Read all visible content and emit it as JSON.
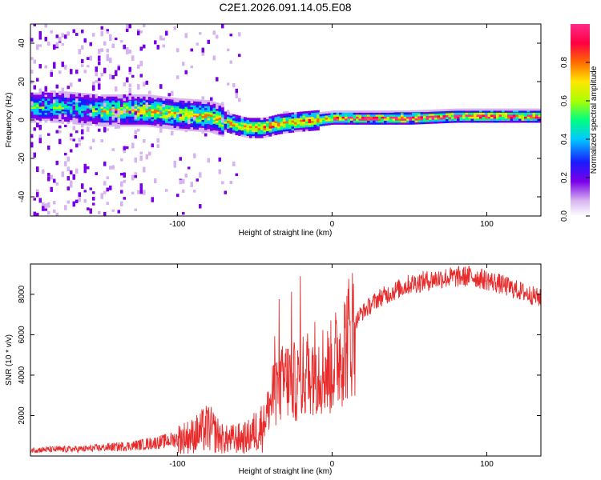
{
  "title": "C2E1.2026.091.14.05.E08",
  "colors": {
    "snr_line": "#e82a2a",
    "frame": "#000000",
    "background": "#ffffff"
  },
  "chart_data": [
    {
      "type": "heatmap",
      "xlabel": "Height of straight line (km)",
      "ylabel": "Frequency (Hz)",
      "xlim": [
        -195,
        135
      ],
      "ylim": [
        -50,
        50
      ],
      "xticks": [
        -100,
        0,
        100
      ],
      "yticks": [
        -40,
        -20,
        0,
        20,
        40
      ],
      "colorbar": {
        "label": "Normalized spectral amplitude",
        "range": [
          0,
          1
        ],
        "ticks": [
          0.0,
          0.2,
          0.4,
          0.6,
          0.8
        ],
        "tick_labels": [
          "0.0",
          "0.2",
          "0.4",
          "0.6",
          "0.8"
        ],
        "colormap": [
          "#ffffff",
          "#d6b4f0",
          "#7a00e8",
          "#1a1aff",
          "#00c8ff",
          "#00ff80",
          "#aaff00",
          "#ffe600",
          "#ff6a00",
          "#ff0040",
          "#ff2b8a"
        ]
      },
      "ridge": {
        "description_points": [
          {
            "x": -180,
            "freq": 7
          },
          {
            "x": -150,
            "freq": 5
          },
          {
            "x": -120,
            "freq": 5
          },
          {
            "x": -100,
            "freq": 3
          },
          {
            "x": -80,
            "freq": 2
          },
          {
            "x": -65,
            "freq": -2
          },
          {
            "x": -55,
            "freq": -4
          },
          {
            "x": -45,
            "freq": -4
          },
          {
            "x": -35,
            "freq": -2
          },
          {
            "x": -25,
            "freq": -1
          },
          {
            "x": -10,
            "freq": 0
          },
          {
            "x": 0,
            "freq": 1
          },
          {
            "x": 20,
            "freq": 1
          },
          {
            "x": 50,
            "freq": 1
          },
          {
            "x": 80,
            "freq": 2
          },
          {
            "x": 110,
            "freq": 2
          },
          {
            "x": 130,
            "freq": 2
          }
        ]
      }
    },
    {
      "type": "line",
      "xlabel": "Height of straight line (km)",
      "ylabel": "SNR (10 * v/v)",
      "xlim": [
        -195,
        135
      ],
      "ylim": [
        0,
        9500
      ],
      "xticks": [
        -100,
        0,
        100
      ],
      "yticks": [
        2000,
        4000,
        6000,
        8000
      ],
      "series": [
        {
          "name": "SNR",
          "trend": [
            {
              "x": -195,
              "y": 300
            },
            {
              "x": -160,
              "y": 350
            },
            {
              "x": -130,
              "y": 500
            },
            {
              "x": -110,
              "y": 700
            },
            {
              "x": -90,
              "y": 1000
            },
            {
              "x": -80,
              "y": 1400
            },
            {
              "x": -70,
              "y": 800
            },
            {
              "x": -55,
              "y": 900
            },
            {
              "x": -45,
              "y": 1500
            },
            {
              "x": -38,
              "y": 3000
            },
            {
              "x": -30,
              "y": 3800
            },
            {
              "x": -22,
              "y": 3600
            },
            {
              "x": -12,
              "y": 4500
            },
            {
              "x": -2,
              "y": 4200
            },
            {
              "x": 8,
              "y": 5500
            },
            {
              "x": 18,
              "y": 7000
            },
            {
              "x": 30,
              "y": 7800
            },
            {
              "x": 50,
              "y": 8500
            },
            {
              "x": 70,
              "y": 8800
            },
            {
              "x": 90,
              "y": 8900
            },
            {
              "x": 105,
              "y": 8600
            },
            {
              "x": 120,
              "y": 8200
            },
            {
              "x": 135,
              "y": 7800
            }
          ]
        }
      ]
    }
  ]
}
